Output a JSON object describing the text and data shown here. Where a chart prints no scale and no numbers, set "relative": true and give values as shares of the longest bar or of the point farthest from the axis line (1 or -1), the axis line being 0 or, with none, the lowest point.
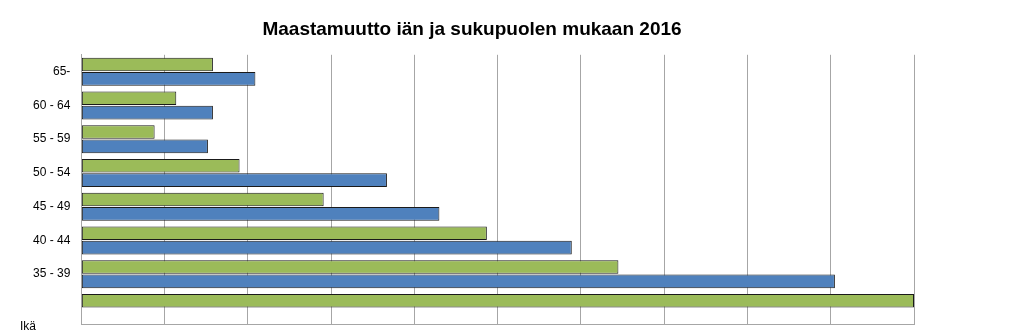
{
  "chart_data": {
    "type": "bar",
    "orientation": "horizontal",
    "relative": true,
    "title": "Maastamuutto iän ja sukupuolen mukaan 2016",
    "ylabel": "Ikä",
    "grid": "x",
    "legend": false,
    "categories": [
      "65-",
      "60 - 64",
      "55 - 59",
      "50 - 54",
      "45 - 49",
      "40 - 44",
      "35 - 39",
      null
    ],
    "series": [
      {
        "color": "#9bbb59",
        "values": [
          0.158,
          0.114,
          0.088,
          0.19,
          0.291,
          0.487,
          0.645,
          1
        ]
      },
      {
        "color": "#4f81bd",
        "values": [
          0.209,
          0.158,
          0.152,
          0.367,
          0.43,
          0.589,
          0.905,
          null
        ]
      }
    ]
  }
}
